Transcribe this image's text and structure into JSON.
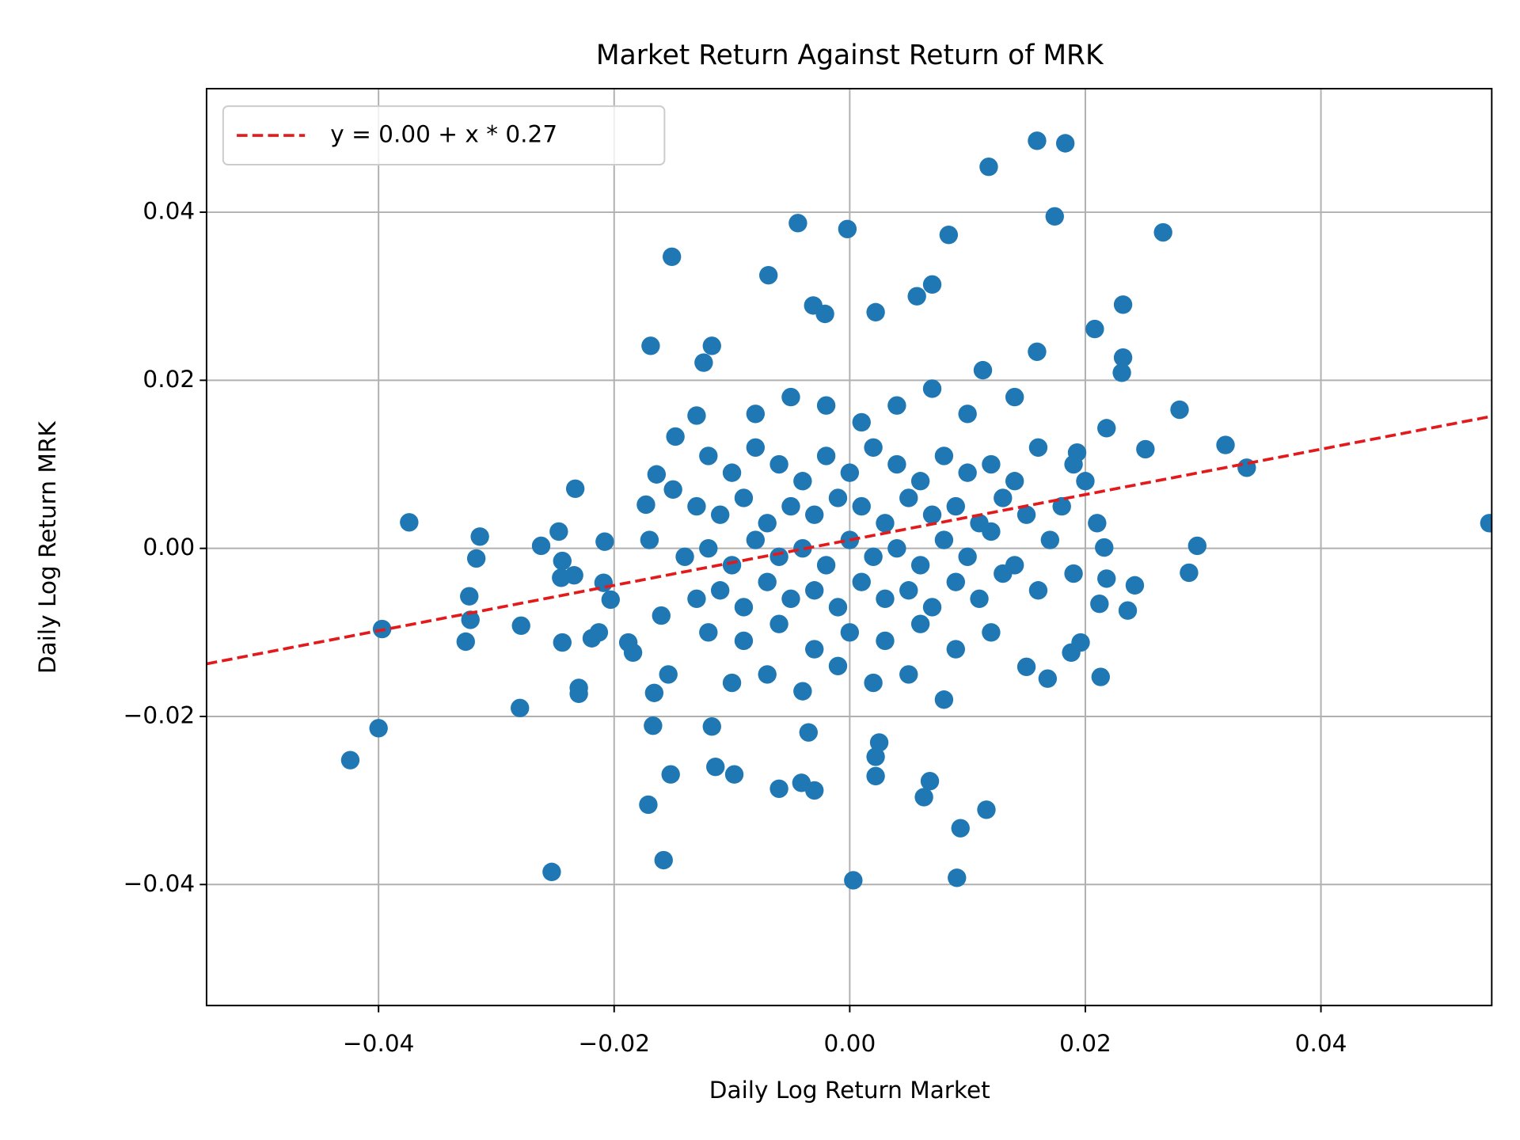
{
  "chart_data": {
    "type": "scatter",
    "title": "Market Return Against Return of MRK",
    "x_label": "Daily Log Return Market",
    "y_label": "Daily Log Return MRK",
    "color": "#1f77b4",
    "grid": true,
    "legend": "upper left",
    "fit": {
      "name": "y = 0.00 + x * 0.27",
      "intercept": 0.001,
      "slope": 0.27,
      "color": "#e31a1c"
    },
    "xlim": [
      -0.0546,
      0.0545
    ],
    "ylim": [
      -0.0544,
      0.0547
    ],
    "xticks": [
      {
        "value": -0.04,
        "label": "−0.04"
      },
      {
        "value": -0.02,
        "label": "−0.02"
      },
      {
        "value": 0,
        "label": "0.00"
      },
      0.02,
      0.04
    ],
    "yticks": [
      {
        "value": -0.04,
        "label": "−0.04"
      },
      {
        "value": -0.02,
        "label": "−0.02"
      },
      {
        "value": 0,
        "label": "0.00"
      },
      0.02,
      0.04
    ],
    "x": [
      0.0159,
      0.0183,
      0.0118,
      0.0174,
      -0.0044,
      -0.0002,
      0.0084,
      0.0266,
      -0.0151,
      -0.0069,
      0.007,
      0.0057,
      -0.0031,
      0.0022,
      -0.0021,
      0.0232,
      0.0208,
      -0.0169,
      -0.0117,
      -0.0124,
      0.0159,
      0.0232,
      0.0231,
      0.0113,
      0.028,
      0.0319,
      0.0337,
      0.0543,
      0.0295,
      0.0288,
      0.0242,
      0.0236,
      0.0213,
      -0.0374,
      -0.0397,
      -0.04,
      -0.0424,
      -0.0314,
      -0.0317,
      -0.0323,
      -0.0322,
      -0.0326,
      -0.0279,
      -0.028,
      -0.0262,
      -0.0247,
      -0.0233,
      -0.0244,
      -0.0245,
      -0.0234,
      -0.0244,
      -0.023,
      -0.023,
      -0.0253,
      -0.0158,
      -0.0171,
      -0.0152,
      -0.0167,
      -0.0166,
      -0.0154,
      -0.0114,
      -0.0098,
      -0.0117,
      -0.006,
      -0.0041,
      -0.003,
      -0.0035,
      0.0003,
      0.0091,
      0.0094,
      0.0116,
      0.0063,
      0.0068,
      0.0022,
      0.0022,
      0.0025,
      0.0168,
      0.015,
      0.0188,
      0.0196,
      -0.0208,
      -0.0209,
      -0.0203,
      -0.0219,
      -0.0213,
      -0.0188,
      -0.0184,
      -0.0173,
      -0.0164,
      -0.0148,
      -0.013,
      0.0218,
      0.0251,
      0.0193,
      0.0216,
      0.0218,
      0.0212,
      -0.012,
      -0.01,
      -0.008,
      -0.006,
      -0.004,
      -0.002,
      0.0,
      0.002,
      0.004,
      0.006,
      0.008,
      0.01,
      0.012,
      0.014,
      0.016,
      -0.013,
      -0.011,
      -0.009,
      -0.007,
      -0.005,
      -0.003,
      -0.001,
      0.001,
      0.003,
      0.005,
      0.007,
      0.009,
      0.011,
      0.013,
      0.015,
      0.018,
      -0.014,
      -0.012,
      -0.01,
      -0.008,
      -0.006,
      -0.004,
      -0.002,
      0.0,
      0.002,
      0.004,
      0.006,
      0.008,
      0.01,
      0.012,
      0.014,
      0.017,
      0.019,
      -0.013,
      -0.011,
      -0.009,
      -0.007,
      -0.005,
      -0.003,
      -0.001,
      0.001,
      0.003,
      0.005,
      0.007,
      0.009,
      0.011,
      0.013,
      0.016,
      -0.012,
      -0.009,
      -0.006,
      -0.003,
      0.0,
      0.003,
      0.006,
      0.009,
      0.012,
      -0.01,
      -0.007,
      -0.004,
      -0.001,
      0.002,
      0.005,
      0.008,
      -0.008,
      -0.005,
      -0.002,
      0.001,
      0.004,
      0.007,
      0.01,
      0.014,
      -0.015,
      0.02,
      -0.016,
      0.021,
      -0.017,
      0.019
    ],
    "values": [
      0.0485,
      0.0482,
      0.0454,
      0.0395,
      0.0387,
      0.038,
      0.0373,
      0.0376,
      0.0347,
      0.0325,
      0.0314,
      0.03,
      0.0289,
      0.0281,
      0.0279,
      0.029,
      0.0261,
      0.0241,
      0.0241,
      0.0221,
      0.0234,
      0.0227,
      0.0209,
      0.0212,
      0.0165,
      0.0123,
      0.0096,
      0.003,
      0.0003,
      -0.0029,
      -0.0044,
      -0.0074,
      -0.0153,
      0.0031,
      -0.0096,
      -0.0214,
      -0.0252,
      0.0014,
      -0.0012,
      -0.0057,
      -0.0085,
      -0.0111,
      -0.0092,
      -0.019,
      0.0003,
      0.002,
      0.0071,
      -0.0015,
      -0.0035,
      -0.0032,
      -0.0112,
      -0.0166,
      -0.0173,
      -0.0385,
      -0.0371,
      -0.0305,
      -0.0269,
      -0.0211,
      -0.0172,
      -0.015,
      -0.026,
      -0.0269,
      -0.0212,
      -0.0286,
      -0.0279,
      -0.0288,
      -0.0219,
      -0.0395,
      -0.0392,
      -0.0333,
      -0.0311,
      -0.0296,
      -0.0277,
      -0.0271,
      -0.0248,
      -0.0231,
      -0.0155,
      -0.0141,
      -0.0124,
      -0.0112,
      0.0008,
      -0.0041,
      -0.0061,
      -0.0107,
      -0.01,
      -0.0112,
      -0.0124,
      0.0052,
      0.0088,
      0.0133,
      0.0158,
      0.0143,
      0.0118,
      0.0114,
      0.0001,
      -0.0036,
      -0.0066,
      0.011,
      0.009,
      0.012,
      0.01,
      0.008,
      0.011,
      0.009,
      0.012,
      0.01,
      0.008,
      0.011,
      0.009,
      0.01,
      0.008,
      0.012,
      0.005,
      0.004,
      0.006,
      0.003,
      0.005,
      0.004,
      0.006,
      0.005,
      0.003,
      0.006,
      0.004,
      0.005,
      0.003,
      0.006,
      0.004,
      0.005,
      -0.001,
      0.0,
      -0.002,
      0.001,
      -0.001,
      0.0,
      -0.002,
      0.001,
      -0.001,
      0.0,
      -0.002,
      0.001,
      -0.001,
      0.002,
      -0.002,
      0.001,
      -0.003,
      -0.006,
      -0.005,
      -0.007,
      -0.004,
      -0.006,
      -0.005,
      -0.007,
      -0.004,
      -0.006,
      -0.005,
      -0.007,
      -0.004,
      -0.006,
      -0.003,
      -0.005,
      -0.01,
      -0.011,
      -0.009,
      -0.012,
      -0.01,
      -0.011,
      -0.009,
      -0.012,
      -0.01,
      -0.016,
      -0.015,
      -0.017,
      -0.014,
      -0.016,
      -0.015,
      -0.018,
      0.016,
      0.018,
      0.017,
      0.015,
      0.017,
      0.019,
      0.016,
      0.018,
      0.007,
      0.008,
      -0.008,
      0.003,
      0.001,
      0.01
    ]
  }
}
